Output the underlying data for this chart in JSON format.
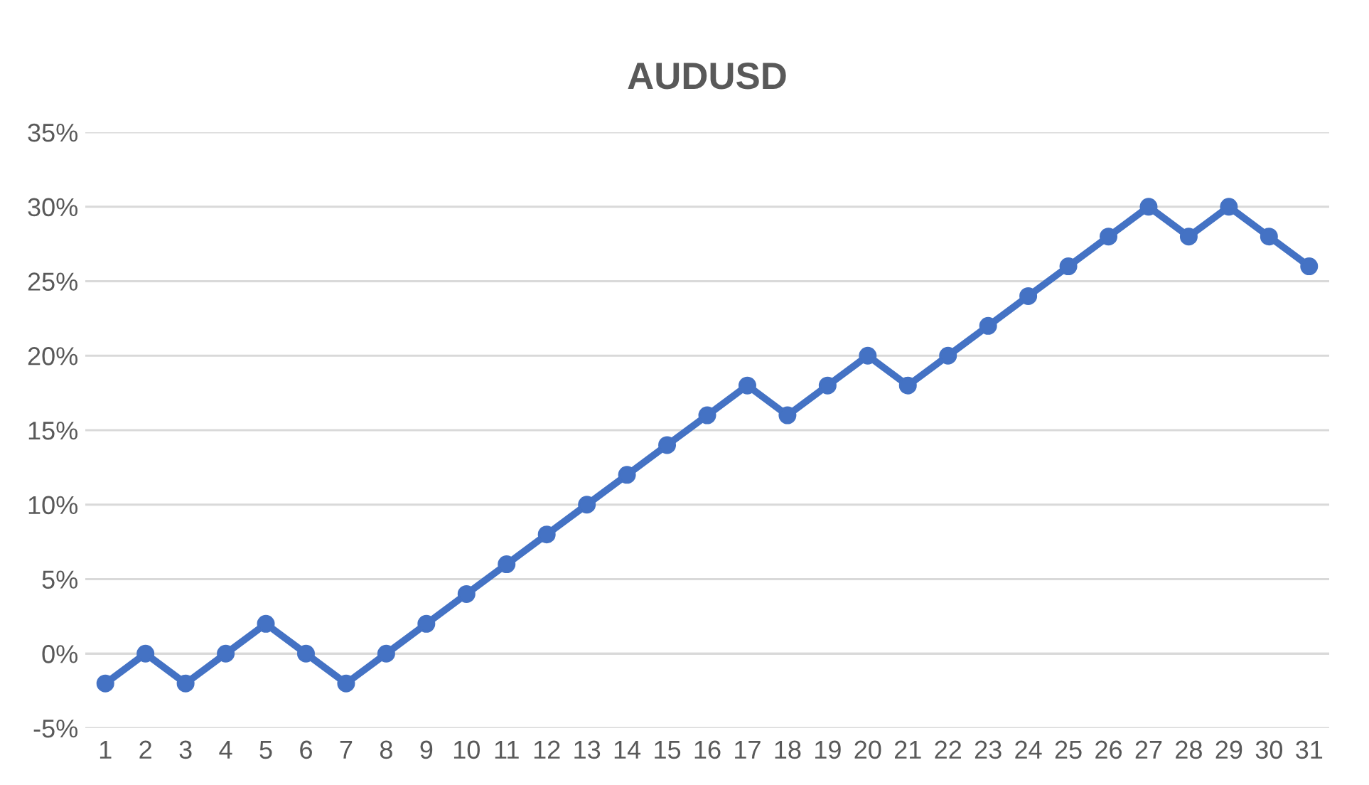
{
  "chart_data": {
    "type": "line",
    "title": "AUDUSD",
    "categories": [
      "1",
      "2",
      "3",
      "4",
      "5",
      "6",
      "7",
      "8",
      "9",
      "10",
      "11",
      "12",
      "13",
      "14",
      "15",
      "16",
      "17",
      "18",
      "19",
      "20",
      "21",
      "22",
      "23",
      "24",
      "25",
      "26",
      "27",
      "28",
      "29",
      "30",
      "31"
    ],
    "series": [
      {
        "color": "#4472c4",
        "values": [
          -2,
          0,
          -2,
          0,
          2,
          0,
          -2,
          0,
          2,
          4,
          6,
          8,
          10,
          12,
          14,
          16,
          18,
          16,
          18,
          20,
          18,
          20,
          22,
          24,
          26,
          28,
          30,
          28,
          30,
          28,
          26
        ]
      }
    ],
    "ylim": [
      -5,
      35
    ],
    "yticks": [
      {
        "value": -5,
        "label": "-5%"
      },
      {
        "value": 0,
        "label": "0%"
      },
      {
        "value": 5,
        "label": "5%"
      },
      {
        "value": 10,
        "label": "10%"
      },
      {
        "value": 15,
        "label": "15%"
      },
      {
        "value": 20,
        "label": "20%"
      },
      {
        "value": 25,
        "label": "25%"
      },
      {
        "value": 30,
        "label": "30%"
      },
      {
        "value": 35,
        "label": "35%"
      }
    ],
    "grid": "y",
    "marker": "circle",
    "line_style": "solid"
  }
}
